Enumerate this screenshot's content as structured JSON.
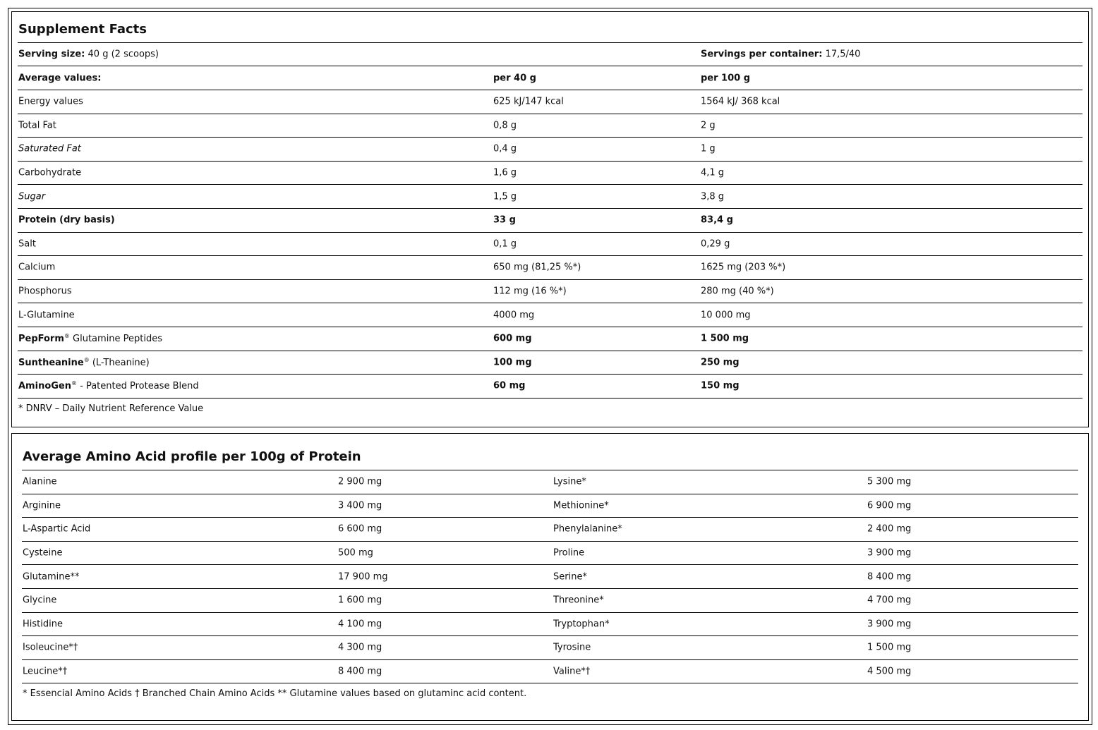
{
  "supplement": {
    "title": "Supplement Facts",
    "serving_size_label": "Serving size:",
    "serving_size_value": "40 g (2 scoops)",
    "servings_label": "Servings per container:",
    "servings_value": "17,5/40",
    "header": {
      "label": "Average values:",
      "col1": "per 40 g",
      "col2": "per 100 g"
    },
    "rows": [
      {
        "name": "Energy values",
        "v1": "625 kJ/147 kcal",
        "v2": "1564 kJ/ 368 kcal",
        "style": ""
      },
      {
        "name": "Total Fat",
        "v1": "0,8 g",
        "v2": "2 g",
        "style": ""
      },
      {
        "name": "Saturated Fat",
        "v1": "0,4 g",
        "v2": "1 g",
        "style": "italic"
      },
      {
        "name": "Carbohydrate",
        "v1": "1,6 g",
        "v2": "4,1 g",
        "style": ""
      },
      {
        "name": "Sugar",
        "v1": "1,5 g",
        "v2": "3,8 g",
        "style": "italic"
      },
      {
        "name": "Protein (dry basis)",
        "v1": "33 g",
        "v2": "83,4 g",
        "style": "bold"
      },
      {
        "name": "Salt",
        "v1": "0,1 g",
        "v2": "0,29 g",
        "style": ""
      },
      {
        "name": "Calcium",
        "v1": "650 mg (81,25 %*)",
        "v2": "1625 mg (203 %*)",
        "style": ""
      },
      {
        "name": "Phosphorus",
        "v1": "112 mg (16 %*)",
        "v2": "280 mg (40 %*)",
        "style": ""
      },
      {
        "name": "L-Glutamine",
        "v1": "4000 mg",
        "v2": "10 000 mg",
        "style": ""
      },
      {
        "brand": "PepForm",
        "mark": "®",
        "name": " Glutamine Peptides",
        "v1": "600 mg",
        "v2": "1 500 mg",
        "style": "brand"
      },
      {
        "brand": "Suntheanine",
        "mark": "®",
        "name": " (L-Theanine)",
        "v1": "100 mg",
        "v2": "250 mg",
        "style": "brand"
      },
      {
        "brand": "AminoGen",
        "mark": "®",
        "name": " - Patented Protease Blend",
        "v1": "60 mg",
        "v2": "150 mg",
        "style": "brand"
      }
    ],
    "footnote": "* DNRV – Daily Nutrient Reference Value"
  },
  "amino": {
    "title": "Average Amino Acid profile per 100g of Protein",
    "rows": [
      [
        "Alanine",
        "2 900 mg",
        "Lysine*",
        "5 300 mg"
      ],
      [
        "Arginine",
        "3 400 mg",
        "Methionine*",
        "6 900 mg"
      ],
      [
        "L-Aspartic Acid",
        "6 600 mg",
        "Phenylalanine*",
        "2 400 mg"
      ],
      [
        "Cysteine",
        "500 mg",
        "Proline",
        "3 900 mg"
      ],
      [
        "Glutamine**",
        "17 900 mg",
        "Serine*",
        "8 400 mg"
      ],
      [
        "Glycine",
        "1 600 mg",
        "Threonine*",
        "4 700 mg"
      ],
      [
        "Histidine",
        "4 100 mg",
        "Tryptophan*",
        "3 900 mg"
      ],
      [
        "Isoleucine*†",
        "4 300 mg",
        "Tyrosine",
        "1 500 mg"
      ],
      [
        "Leucine*†",
        "8 400 mg",
        "Valine*†",
        "4 500 mg"
      ]
    ],
    "footnote": "* Essencial Amino Acids † Branched Chain Amino Acids ** Glutamine values based on glutaminc acid content."
  }
}
